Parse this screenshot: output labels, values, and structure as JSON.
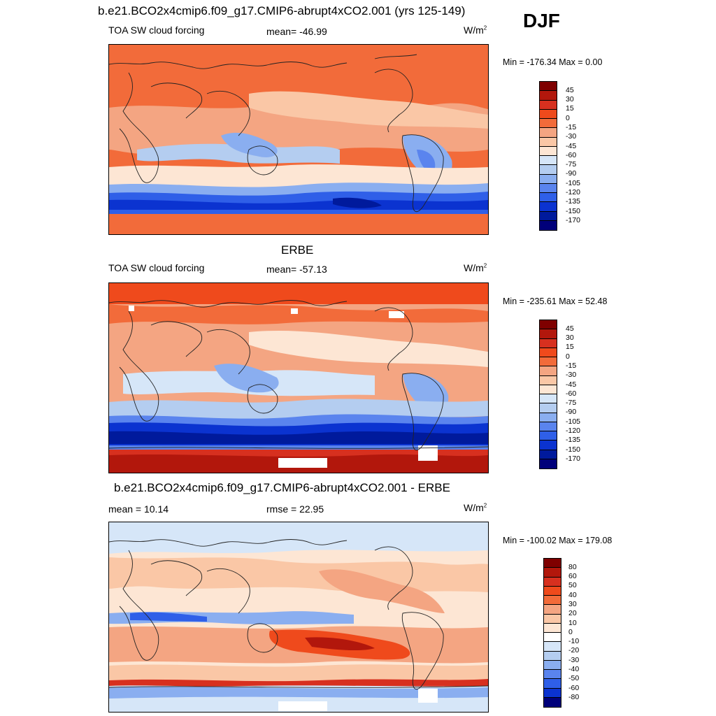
{
  "season": "DJF",
  "panels": [
    {
      "id": "model",
      "title": "b.e21.BCO2x4cmip6.f09_g17.CMIP6-abrupt4xCO2.001 (yrs 125-149)",
      "left_label": "TOA SW cloud forcing",
      "center_label": "mean= -46.99",
      "units": "W/m",
      "units_sup": "2",
      "minmax": "Min = -176.34 Max =   0.00",
      "colorbar_labels": [
        "45",
        "30",
        "15",
        "0",
        "-15",
        "-30",
        "-45",
        "-60",
        "-75",
        "-90",
        "-105",
        "-120",
        "-135",
        "-150",
        "-170"
      ]
    },
    {
      "id": "obs",
      "title": "ERBE",
      "left_label": "TOA SW cloud forcing",
      "center_label": "mean= -57.13",
      "units": "W/m",
      "units_sup": "2",
      "minmax": "Min = -235.61 Max =  52.48",
      "colorbar_labels": [
        "45",
        "30",
        "15",
        "0",
        "-15",
        "-30",
        "-45",
        "-60",
        "-75",
        "-90",
        "-105",
        "-120",
        "-135",
        "-150",
        "-170"
      ]
    },
    {
      "id": "diff",
      "title": "b.e21.BCO2x4cmip6.f09_g17.CMIP6-abrupt4xCO2.001 - ERBE",
      "left_label": "mean =  10.14",
      "center_label": "rmse =  22.95",
      "units": "W/m",
      "units_sup": "2",
      "minmax": "Min = -100.02 Max = 179.08",
      "colorbar_labels": [
        "80",
        "60",
        "50",
        "40",
        "30",
        "20",
        "10",
        "0",
        "-10",
        "-20",
        "-30",
        "-40",
        "-50",
        "-60",
        "-80"
      ]
    }
  ],
  "colors": {
    "forcing_scale": [
      "#7f0000",
      "#b2170c",
      "#d7301f",
      "#ef4a1c",
      "#f26b3a",
      "#f4a582",
      "#fac7a6",
      "#fde6d4",
      "#d6e6f8",
      "#b4cdf0",
      "#8aaef0",
      "#5a84ee",
      "#2f5fe8",
      "#0b33d0",
      "#001a9c",
      "#00007a"
    ],
    "diff_scale": [
      "#7f0000",
      "#b2170c",
      "#d7301f",
      "#ef4a1c",
      "#f26b3a",
      "#f4a582",
      "#fac7a6",
      "#fde6d4",
      "#ffffff",
      "#d6e6f8",
      "#b4cdf0",
      "#8aaef0",
      "#5a84ee",
      "#2f5fe8",
      "#0b33d0",
      "#00007a"
    ]
  }
}
